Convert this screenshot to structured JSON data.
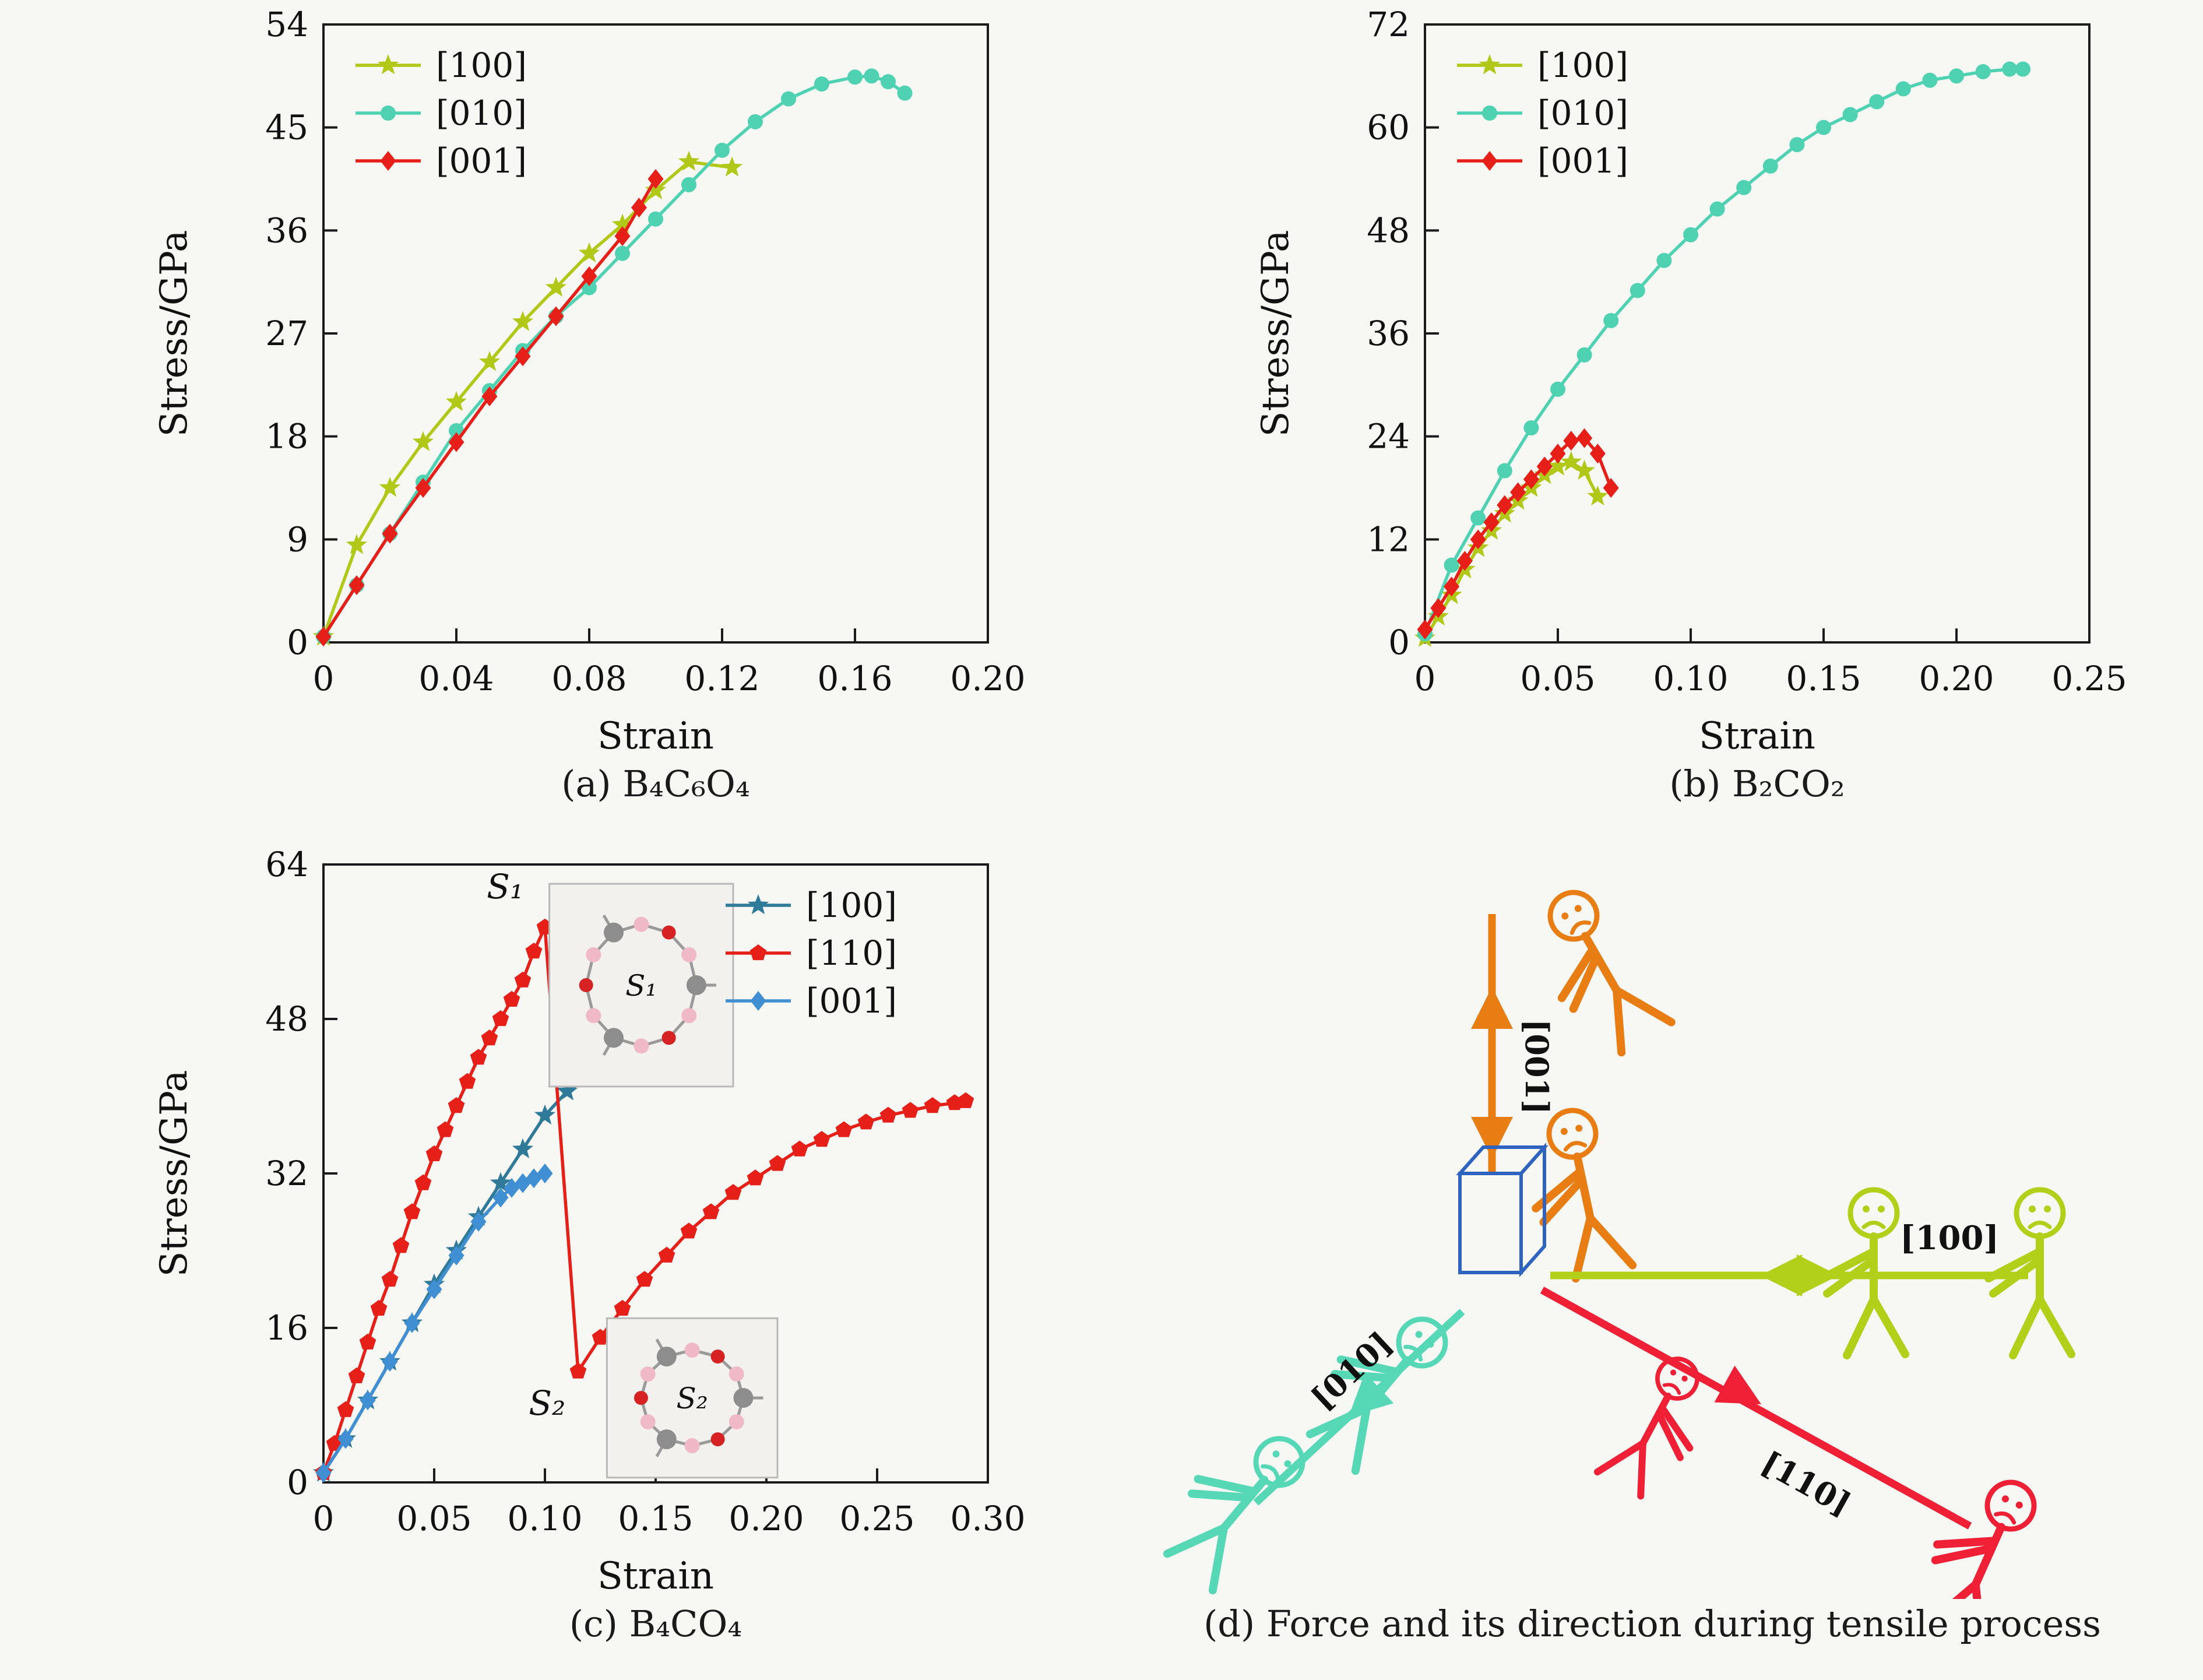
{
  "figure": {
    "background": "#f7f7f4",
    "captions": {
      "a": "(a) B₄C₆O₄",
      "b": "(b) B₂CO₂",
      "c": "(c) B₄CO₄",
      "d": "(d) Force and its direction during tensile process"
    }
  },
  "chart_data": [
    {
      "id": "a",
      "type": "line",
      "xlabel": "Strain",
      "ylabel": "Stress/GPa",
      "xlim": [
        0,
        0.2
      ],
      "ylim": [
        0,
        54
      ],
      "xticks": [
        0,
        0.04,
        0.08,
        0.12,
        0.16,
        0.2
      ],
      "xtick_labels": [
        "0",
        "0.04",
        "0.08",
        "0.12",
        "0.16",
        "0.20"
      ],
      "yticks": [
        0,
        9,
        18,
        27,
        36,
        45,
        54
      ],
      "ytick_labels": [
        "0",
        "9",
        "18",
        "27",
        "36",
        "45",
        "54"
      ],
      "grid": false,
      "legend": "top-left",
      "series": [
        {
          "name": "[100]",
          "color": "#b2c818",
          "marker": "star",
          "x": [
            0,
            0.01,
            0.02,
            0.03,
            0.04,
            0.05,
            0.06,
            0.07,
            0.08,
            0.09,
            0.1,
            0.11,
            0.123
          ],
          "y": [
            0.5,
            8.5,
            13.5,
            17.5,
            21,
            24.5,
            28,
            31,
            34,
            36.5,
            39.5,
            42,
            41.5
          ]
        },
        {
          "name": "[010]",
          "color": "#4fd2b2",
          "marker": "circle",
          "x": [
            0,
            0.01,
            0.02,
            0.03,
            0.04,
            0.05,
            0.06,
            0.07,
            0.08,
            0.09,
            0.1,
            0.11,
            0.12,
            0.13,
            0.14,
            0.15,
            0.16,
            0.165,
            0.17,
            0.175
          ],
          "y": [
            0.5,
            5,
            9.5,
            14,
            18.5,
            22,
            25.5,
            28.5,
            31,
            34,
            37,
            40,
            43,
            45.5,
            47.5,
            48.8,
            49.4,
            49.5,
            49,
            48
          ]
        },
        {
          "name": "[001]",
          "color": "#e62019",
          "marker": "diamond",
          "x": [
            0,
            0.01,
            0.02,
            0.03,
            0.04,
            0.05,
            0.06,
            0.07,
            0.08,
            0.09,
            0.095,
            0.1
          ],
          "y": [
            0.5,
            5,
            9.5,
            13.5,
            17.5,
            21.5,
            25,
            28.5,
            32,
            35.5,
            38,
            40.5
          ]
        }
      ]
    },
    {
      "id": "b",
      "type": "line",
      "xlabel": "Strain",
      "ylabel": "Stress/GPa",
      "xlim": [
        0,
        0.25
      ],
      "ylim": [
        0,
        72
      ],
      "xticks": [
        0,
        0.05,
        0.1,
        0.15,
        0.2,
        0.25
      ],
      "xtick_labels": [
        "0",
        "0.05",
        "0.10",
        "0.15",
        "0.20",
        "0.25"
      ],
      "yticks": [
        0,
        12,
        24,
        36,
        48,
        60,
        72
      ],
      "ytick_labels": [
        "0",
        "12",
        "24",
        "36",
        "48",
        "60",
        "72"
      ],
      "grid": false,
      "legend": "top-left",
      "series": [
        {
          "name": "[100]",
          "color": "#b2c818",
          "marker": "star",
          "x": [
            0,
            0.005,
            0.01,
            0.015,
            0.02,
            0.025,
            0.03,
            0.035,
            0.04,
            0.045,
            0.05,
            0.055,
            0.06,
            0.065
          ],
          "y": [
            0.5,
            3,
            5.5,
            8.5,
            11,
            13,
            15,
            16.5,
            18,
            19.5,
            20.5,
            21,
            20,
            17
          ]
        },
        {
          "name": "[010]",
          "color": "#4fd2b2",
          "marker": "circle",
          "x": [
            0,
            0.01,
            0.02,
            0.03,
            0.04,
            0.05,
            0.06,
            0.07,
            0.08,
            0.09,
            0.1,
            0.11,
            0.12,
            0.13,
            0.14,
            0.15,
            0.16,
            0.17,
            0.18,
            0.19,
            0.2,
            0.21,
            0.22,
            0.225
          ],
          "y": [
            1,
            9,
            14.5,
            20,
            25,
            29.5,
            33.5,
            37.5,
            41,
            44.5,
            47.5,
            50.5,
            53,
            55.5,
            58,
            60,
            61.5,
            63,
            64.5,
            65.5,
            66,
            66.5,
            66.8,
            66.8
          ]
        },
        {
          "name": "[001]",
          "color": "#e62019",
          "marker": "diamond",
          "x": [
            0,
            0.005,
            0.01,
            0.015,
            0.02,
            0.025,
            0.03,
            0.035,
            0.04,
            0.045,
            0.05,
            0.055,
            0.06,
            0.065,
            0.07
          ],
          "y": [
            1.5,
            4,
            6.5,
            9.5,
            12,
            14,
            16,
            17.5,
            19,
            20.5,
            22,
            23.5,
            23.8,
            22,
            18
          ]
        }
      ]
    },
    {
      "id": "c",
      "type": "line",
      "xlabel": "Strain",
      "ylabel": "Stress/GPa",
      "xlim": [
        0,
        0.3
      ],
      "ylim": [
        0,
        64
      ],
      "xticks": [
        0,
        0.05,
        0.1,
        0.15,
        0.2,
        0.25,
        0.3
      ],
      "xtick_labels": [
        "0",
        "0.05",
        "0.10",
        "0.15",
        "0.20",
        "0.25",
        "0.30"
      ],
      "yticks": [
        0,
        16,
        32,
        48,
        64
      ],
      "ytick_labels": [
        "0",
        "16",
        "32",
        "48",
        "64"
      ],
      "grid": false,
      "legend": "top-right",
      "annotations": [
        {
          "text": "S₁",
          "x": 0.082,
          "y": 60.5
        },
        {
          "text": "S₂",
          "x": 0.101,
          "y": 7
        }
      ],
      "insets": [
        {
          "label": "S₁",
          "x": [
            0.102,
            0.185
          ],
          "y": [
            41,
            62
          ]
        },
        {
          "label": "S₂",
          "x": [
            0.128,
            0.205
          ],
          "y": [
            0.5,
            17
          ]
        }
      ],
      "series": [
        {
          "name": "[100]",
          "color": "#2f7a99",
          "marker": "star",
          "x": [
            0,
            0.01,
            0.02,
            0.03,
            0.04,
            0.05,
            0.06,
            0.07,
            0.08,
            0.09,
            0.1,
            0.11,
            0.12,
            0.13,
            0.135
          ],
          "y": [
            1,
            4.5,
            8.5,
            12.5,
            16.5,
            20.5,
            24,
            27.5,
            31,
            34.5,
            38,
            40.5,
            42,
            43,
            43.5
          ]
        },
        {
          "name": "[110]",
          "color": "#e62019",
          "marker": "pentagon",
          "x": [
            0,
            0.005,
            0.01,
            0.015,
            0.02,
            0.025,
            0.03,
            0.035,
            0.04,
            0.045,
            0.05,
            0.055,
            0.06,
            0.065,
            0.07,
            0.075,
            0.08,
            0.085,
            0.09,
            0.095,
            0.1,
            0.115,
            0.125,
            0.135,
            0.145,
            0.155,
            0.165,
            0.175,
            0.185,
            0.195,
            0.205,
            0.215,
            0.225,
            0.235,
            0.245,
            0.255,
            0.265,
            0.275,
            0.285,
            0.29
          ],
          "y": [
            1,
            4,
            7.5,
            11,
            14.5,
            18,
            21,
            24.5,
            28,
            31,
            34,
            36.5,
            39,
            41.5,
            44,
            46,
            48,
            50,
            52,
            55,
            57.5,
            11.5,
            15,
            18,
            21,
            23.5,
            26,
            28,
            30,
            31.5,
            33,
            34.5,
            35.5,
            36.5,
            37.3,
            38,
            38.5,
            39,
            39.3,
            39.5
          ]
        },
        {
          "name": "[001]",
          "color": "#3f8fd2",
          "marker": "diamond",
          "x": [
            0,
            0.01,
            0.02,
            0.03,
            0.04,
            0.05,
            0.06,
            0.07,
            0.08,
            0.085,
            0.09,
            0.095,
            0.1
          ],
          "y": [
            1,
            4.5,
            8.5,
            12.5,
            16.5,
            20,
            23.5,
            27,
            29.5,
            30.5,
            31,
            31.5,
            32
          ]
        }
      ]
    }
  ],
  "diagram": {
    "labels": {
      "up": "[001]",
      "right": "[100]",
      "lower_left": "[010]",
      "lower_right": "[110]"
    },
    "colors": {
      "up": "#e87d14",
      "right": "#b2cf1a",
      "lower_left": "#56d8b6",
      "lower_right": "#ef1f35",
      "cube": "#2f63c0"
    }
  }
}
